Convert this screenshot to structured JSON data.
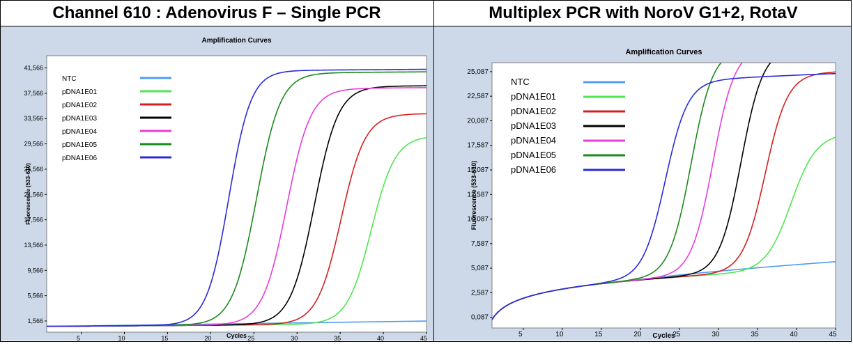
{
  "header": {
    "left_title": "Channel 610 : Adenovirus F – Single PCR",
    "right_title": "Multiplex PCR with NoroV G1+2, RotaV"
  },
  "chart_data": [
    {
      "type": "line",
      "title": "Amplification Curves",
      "xlabel": "Cycles",
      "ylabel": "Fluorescence (533-610)",
      "xlim": [
        1,
        45
      ],
      "ylim": [
        -200,
        43500
      ],
      "xticks": [
        5,
        10,
        15,
        20,
        25,
        30,
        35,
        40,
        45
      ],
      "yticks": [
        1566,
        5566,
        9566,
        13566,
        17566,
        21566,
        25566,
        29566,
        33566,
        37566,
        41566
      ],
      "ytick_labels": [
        "1,566",
        "5,566",
        "9,566",
        "13,566",
        "17,566",
        "21,566",
        "25,566",
        "29,566",
        "33,566",
        "37,566",
        "41,566"
      ],
      "grid": false,
      "legend": "top-left",
      "series": [
        {
          "name": "NTC",
          "color": "#4f9cf0",
          "base": 700,
          "slope": 20,
          "plateau": 0,
          "ct": 0,
          "k": 1
        },
        {
          "name": "pDNA1E01",
          "color": "#4fe64f",
          "base": 700,
          "slope": 10,
          "plateau": 29700,
          "ct": 38.6,
          "k": 0.72
        },
        {
          "name": "pDNA1E02",
          "color": "#d42020",
          "base": 700,
          "slope": 10,
          "plateau": 33200,
          "ct": 35.1,
          "k": 0.72
        },
        {
          "name": "pDNA1E03",
          "color": "#000000",
          "base": 700,
          "slope": 10,
          "plateau": 37600,
          "ct": 32.0,
          "k": 0.72
        },
        {
          "name": "pDNA1E04",
          "color": "#e83cd8",
          "base": 700,
          "slope": 10,
          "plateau": 37300,
          "ct": 28.8,
          "k": 0.72
        },
        {
          "name": "pDNA1E05",
          "color": "#1a8a1a",
          "base": 700,
          "slope": 10,
          "plateau": 39800,
          "ct": 25.3,
          "k": 0.72
        },
        {
          "name": "pDNA1E06",
          "color": "#2a2ad8",
          "base": 700,
          "slope": 10,
          "plateau": 40200,
          "ct": 22.1,
          "k": 0.78
        }
      ]
    },
    {
      "type": "line",
      "title": "Amplification Curves",
      "xlabel": "Cycles",
      "ylabel": "Fluorescence (533-610)",
      "xlim": [
        1,
        45
      ],
      "ylim": [
        -1000,
        26000
      ],
      "xticks": [
        5,
        10,
        15,
        20,
        25,
        30,
        35,
        40,
        45
      ],
      "yticks": [
        87,
        2587,
        5087,
        7587,
        10087,
        12587,
        15087,
        17587,
        20087,
        22587,
        25087
      ],
      "ytick_labels": [
        "0,087",
        "2,587",
        "5,087",
        "7,587",
        "10,087",
        "12,587",
        "15,087",
        "17,587",
        "20,087",
        "22,587",
        "25,087"
      ],
      "grid": false,
      "legend": "top-left",
      "series": [
        {
          "name": "NTC",
          "color": "#4f9cf0",
          "base": 0,
          "slope": 0,
          "plateau": 0,
          "ct": 0,
          "k": 1
        },
        {
          "name": "pDNA1E01",
          "color": "#4fe64f",
          "base": 0,
          "slope": 0,
          "plateau": 13800,
          "ct": 39.3,
          "k": 0.62
        },
        {
          "name": "pDNA1E02",
          "color": "#d42020",
          "base": 0,
          "slope": 0,
          "plateau": 20100,
          "ct": 36.0,
          "k": 0.7
        },
        {
          "name": "pDNA1E03",
          "color": "#000000",
          "base": 0,
          "slope": 0,
          "plateau": 22700,
          "ct": 32.9,
          "k": 0.72
        },
        {
          "name": "pDNA1E04",
          "color": "#e83cd8",
          "base": 0,
          "slope": 0,
          "plateau": 22900,
          "ct": 29.3,
          "k": 0.72
        },
        {
          "name": "pDNA1E05",
          "color": "#1a8a1a",
          "base": 0,
          "slope": 0,
          "plateau": 22900,
          "ct": 26.5,
          "k": 0.72
        },
        {
          "name": "pDNA1E06",
          "color": "#2a2ad8",
          "base": 0,
          "slope": 0,
          "plateau": 19900,
          "ct": 23.2,
          "k": 0.7
        }
      ]
    }
  ]
}
